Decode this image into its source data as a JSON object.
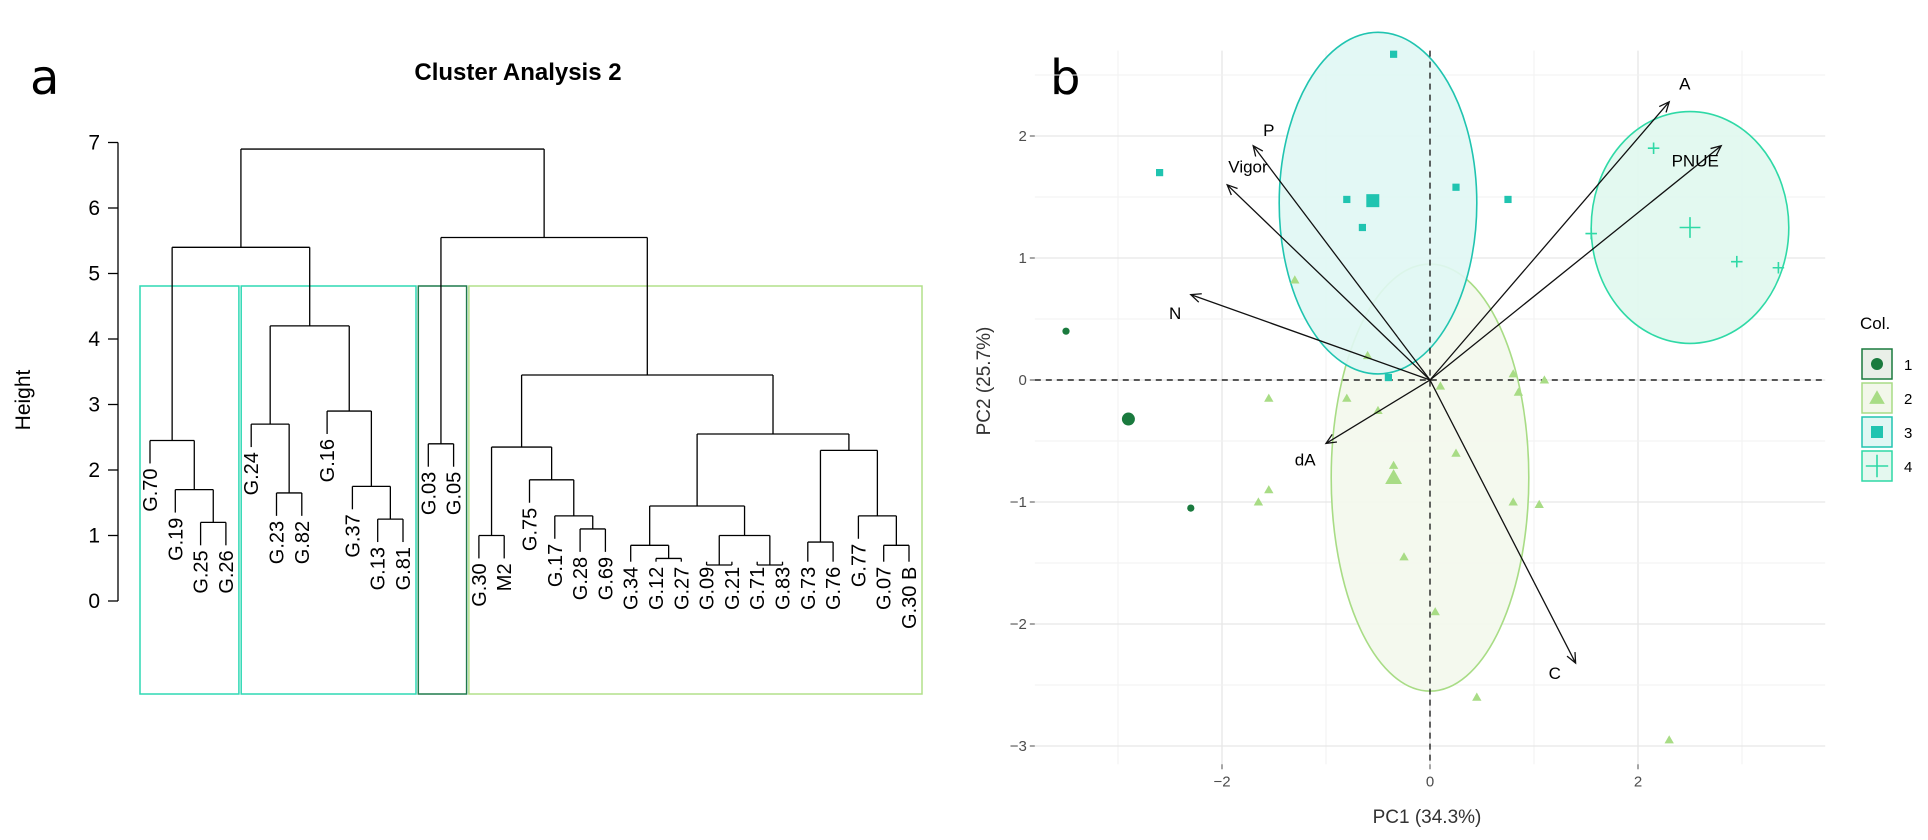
{
  "panels": {
    "a": "a",
    "b": "b"
  },
  "chart_data": [
    {
      "type": "dendrogram",
      "title": "Cluster Analysis 2",
      "ylabel": "Height",
      "ylim": [
        0,
        7
      ],
      "yticks": [
        "0",
        "1",
        "2",
        "3",
        "4",
        "5",
        "6",
        "7"
      ],
      "leaves": [
        "G.70",
        "G.19",
        "G.25",
        "G.26",
        "G.24",
        "G.23",
        "G.82",
        "G.16",
        "G.37",
        "G.13",
        "G.81",
        "G.03",
        "G.05",
        "G.30",
        "M2",
        "G.75",
        "G.17",
        "G.28",
        "G.69",
        "G.34",
        "G.12",
        "G.27",
        "G.09",
        "G.21",
        "G.71",
        "G.83",
        "G.73",
        "G.76",
        "G.77",
        "G.07",
        "G.30 B"
      ],
      "merges": [
        {
          "a": "L2",
          "b": "L3",
          "h": 1.2
        },
        {
          "a": "L1",
          "b": "M0",
          "h": 1.7
        },
        {
          "a": "L0",
          "b": "M1",
          "h": 2.45
        },
        {
          "a": "L5",
          "b": "L6",
          "h": 1.65
        },
        {
          "a": "L4",
          "b": "M3",
          "h": 2.7
        },
        {
          "a": "L9",
          "b": "L10",
          "h": 1.25
        },
        {
          "a": "L8",
          "b": "M5",
          "h": 1.75
        },
        {
          "a": "L7",
          "b": "M6",
          "h": 2.9
        },
        {
          "a": "M4",
          "b": "M7",
          "h": 4.2
        },
        {
          "a": "M2",
          "b": "M8",
          "h": 5.4
        },
        {
          "a": "L11",
          "b": "L12",
          "h": 2.4
        },
        {
          "a": "L17",
          "b": "L18",
          "h": 1.1
        },
        {
          "a": "L16",
          "b": "M11",
          "h": 1.3
        },
        {
          "a": "L15",
          "b": "M12",
          "h": 1.85
        },
        {
          "a": "L13",
          "b": "L14",
          "h": 1.0
        },
        {
          "a": "M14",
          "b": "M13",
          "h": 2.35
        },
        {
          "a": "L20",
          "b": "L21",
          "h": 0.65
        },
        {
          "a": "L19",
          "b": "M16",
          "h": 0.85
        },
        {
          "a": "L22",
          "b": "L23",
          "h": 0.55
        },
        {
          "a": "L24",
          "b": "L25",
          "h": 0.55
        },
        {
          "a": "M18",
          "b": "M19",
          "h": 1.0
        },
        {
          "a": "M17",
          "b": "M20",
          "h": 1.45
        },
        {
          "a": "L26",
          "b": "L27",
          "h": 0.9
        },
        {
          "a": "L29",
          "b": "L30",
          "h": 0.85
        },
        {
          "a": "L28",
          "b": "M23",
          "h": 1.3
        },
        {
          "a": "M22",
          "b": "M24",
          "h": 2.3
        },
        {
          "a": "M21",
          "b": "M25",
          "h": 2.55
        },
        {
          "a": "M15",
          "b": "M26",
          "h": 3.45
        },
        {
          "a": "M10",
          "b": "M27",
          "h": 5.55
        },
        {
          "a": "M9",
          "b": "M28",
          "h": 6.9
        }
      ],
      "cluster_boxes": [
        {
          "from": 0,
          "to": 3,
          "color": "#2fd9b4"
        },
        {
          "from": 4,
          "to": 10,
          "color": "#2fd9b4"
        },
        {
          "from": 11,
          "to": 12,
          "color": "#1f7a4c"
        },
        {
          "from": 13,
          "to": 30,
          "color": "#b2e08a"
        }
      ]
    },
    {
      "type": "pca-biplot",
      "xlabel": "PC1 (34.3%)",
      "ylabel": "PC2 (25.7%)",
      "xlim": [
        -3.8,
        3.8
      ],
      "ylim": [
        -3.15,
        2.7
      ],
      "xticks": [
        -2,
        0,
        2
      ],
      "yticks": [
        -3,
        -2,
        -1,
        0,
        1,
        2
      ],
      "groups": [
        {
          "name": "1",
          "color": "#1a7a3e",
          "shape": "circle",
          "ellipse": false,
          "points": [
            [
              -3.5,
              0.4
            ],
            [
              -2.3,
              -1.05
            ]
          ],
          "centroid": [
            -2.9,
            -0.32
          ]
        },
        {
          "name": "2",
          "color": "#a8dc85",
          "shape": "triangle",
          "ellipse": true,
          "ellipse_params": {
            "cx": 0,
            "cy": -0.8,
            "rx": 0.95,
            "ry": 1.75,
            "fill": "#f3f8ec"
          },
          "points": [
            [
              -1.3,
              0.82
            ],
            [
              -0.6,
              0.2
            ],
            [
              -1.55,
              -0.9
            ],
            [
              -1.65,
              -1.0
            ],
            [
              -1.55,
              -0.15
            ],
            [
              -0.8,
              -0.15
            ],
            [
              -0.5,
              -0.25
            ],
            [
              0.1,
              -0.05
            ],
            [
              0.8,
              0.05
            ],
            [
              0.85,
              -0.1
            ],
            [
              1.1,
              0.0
            ],
            [
              -0.35,
              -0.7
            ],
            [
              0.25,
              -0.6
            ],
            [
              0.8,
              -1.0
            ],
            [
              1.05,
              -1.02
            ],
            [
              -0.25,
              -1.45
            ],
            [
              0.05,
              -1.9
            ],
            [
              0.45,
              -2.6
            ],
            [
              2.3,
              -2.95
            ]
          ],
          "centroid": [
            -0.35,
            -0.8
          ]
        },
        {
          "name": "3",
          "color": "#20c4b0",
          "shape": "square",
          "ellipse": true,
          "ellipse_params": {
            "cx": -0.5,
            "cy": 1.45,
            "rx": 0.95,
            "ry": 1.4,
            "fill": "#e0f7f4"
          },
          "points": [
            [
              -0.35,
              2.67
            ],
            [
              -2.6,
              1.7
            ],
            [
              -0.8,
              1.48
            ],
            [
              -0.65,
              1.25
            ],
            [
              0.25,
              1.58
            ],
            [
              0.75,
              1.48
            ],
            [
              -0.4,
              0.02
            ]
          ],
          "centroid": [
            -0.55,
            1.47
          ]
        },
        {
          "name": "4",
          "color": "#2fd9a6",
          "shape": "plus",
          "ellipse": true,
          "ellipse_params": {
            "cx": 2.5,
            "cy": 1.25,
            "rx": 0.95,
            "ry": 0.95,
            "fill": "#e0f8ee"
          },
          "points": [
            [
              2.15,
              1.9
            ],
            [
              1.55,
              1.2
            ],
            [
              2.95,
              0.97
            ],
            [
              3.35,
              0.92
            ]
          ],
          "centroid": [
            2.5,
            1.25
          ]
        }
      ],
      "vectors": [
        {
          "name": "A",
          "x": 2.3,
          "y": 2.28,
          "lx": 2.45,
          "ly": 2.38
        },
        {
          "name": "PNUE",
          "x": 2.8,
          "y": 1.92,
          "lx": 2.55,
          "ly": 1.75
        },
        {
          "name": "P",
          "x": -1.7,
          "y": 1.92,
          "lx": -1.55,
          "ly": 2.0
        },
        {
          "name": "Vigor",
          "x": -1.95,
          "y": 1.6,
          "lx": -1.75,
          "ly": 1.7
        },
        {
          "name": "N",
          "x": -2.3,
          "y": 0.7,
          "lx": -2.45,
          "ly": 0.5
        },
        {
          "name": "dA",
          "x": -1.0,
          "y": -0.52,
          "lx": -1.2,
          "ly": -0.7
        },
        {
          "name": "C",
          "x": 1.4,
          "y": -2.32,
          "lx": 1.2,
          "ly": -2.45
        }
      ],
      "legend": {
        "title": "Col.",
        "entries": [
          "1",
          "2",
          "3",
          "4"
        ],
        "position": "right"
      }
    }
  ]
}
